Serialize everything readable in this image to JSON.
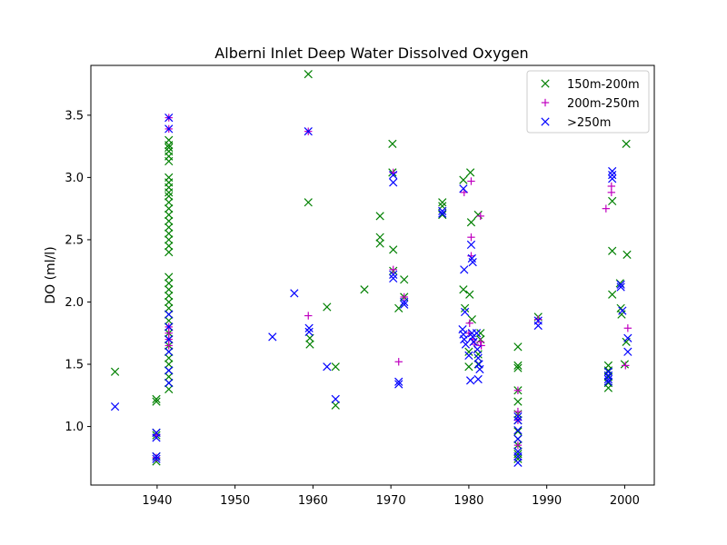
{
  "chart_data": {
    "type": "scatter",
    "title": "Alberni Inlet Deep Water Dissolved Oxygen",
    "xlabel": "",
    "ylabel": "DO (ml/l)",
    "xlim": [
      1931.5,
      2003.8
    ],
    "ylim": [
      0.53,
      3.9
    ],
    "xticks": [
      1940,
      1950,
      1960,
      1970,
      1980,
      1990,
      2000
    ],
    "yticks": [
      1.0,
      1.5,
      2.0,
      2.5,
      3.0,
      3.5
    ],
    "ytick_labels": [
      "1.0",
      "1.5",
      "2.0",
      "2.5",
      "3.0",
      "3.5"
    ],
    "grid": false,
    "legend_position": "upper right",
    "series": [
      {
        "name": "150m-200m",
        "marker": "x",
        "color": "#008000",
        "points": [
          [
            1934.6,
            1.44
          ],
          [
            1939.9,
            1.22
          ],
          [
            1939.9,
            1.2
          ],
          [
            1939.9,
            0.95
          ],
          [
            1939.9,
            0.93
          ],
          [
            1939.9,
            0.76
          ],
          [
            1939.9,
            0.72
          ],
          [
            1941.5,
            3.3
          ],
          [
            1941.5,
            3.26
          ],
          [
            1941.5,
            3.24
          ],
          [
            1941.5,
            3.21
          ],
          [
            1941.5,
            3.17
          ],
          [
            1941.5,
            3.13
          ],
          [
            1941.5,
            3.0
          ],
          [
            1941.5,
            2.96
          ],
          [
            1941.5,
            2.92
          ],
          [
            1941.5,
            2.88
          ],
          [
            1941.5,
            2.85
          ],
          [
            1941.5,
            2.8
          ],
          [
            1941.5,
            2.75
          ],
          [
            1941.5,
            2.7
          ],
          [
            1941.5,
            2.65
          ],
          [
            1941.5,
            2.6
          ],
          [
            1941.5,
            2.55
          ],
          [
            1941.5,
            2.5
          ],
          [
            1941.5,
            2.45
          ],
          [
            1941.5,
            2.4
          ],
          [
            1941.5,
            2.2
          ],
          [
            1941.5,
            2.15
          ],
          [
            1941.5,
            2.1
          ],
          [
            1941.5,
            2.05
          ],
          [
            1941.5,
            2.0
          ],
          [
            1941.5,
            1.95
          ],
          [
            1941.5,
            1.9
          ],
          [
            1941.5,
            1.85
          ],
          [
            1941.5,
            1.8
          ],
          [
            1941.5,
            1.75
          ],
          [
            1941.5,
            1.7
          ],
          [
            1941.5,
            1.65
          ],
          [
            1941.5,
            1.6
          ],
          [
            1941.5,
            1.55
          ],
          [
            1941.5,
            1.5
          ],
          [
            1941.5,
            1.45
          ],
          [
            1941.5,
            1.4
          ],
          [
            1941.5,
            1.35
          ],
          [
            1941.5,
            1.3
          ],
          [
            1959.4,
            3.83
          ],
          [
            1959.4,
            2.8
          ],
          [
            1959.6,
            1.71
          ],
          [
            1959.6,
            1.66
          ],
          [
            1961.8,
            1.96
          ],
          [
            1962.9,
            1.48
          ],
          [
            1962.9,
            1.17
          ],
          [
            1966.6,
            2.1
          ],
          [
            1968.6,
            2.69
          ],
          [
            1968.6,
            2.52
          ],
          [
            1968.6,
            2.47
          ],
          [
            1970.2,
            3.27
          ],
          [
            1970.2,
            3.04
          ],
          [
            1970.3,
            2.42
          ],
          [
            1970.3,
            2.25
          ],
          [
            1971.0,
            1.95
          ],
          [
            1971.7,
            2.18
          ],
          [
            1971.7,
            2.04
          ],
          [
            1976.6,
            2.8
          ],
          [
            1976.6,
            2.77
          ],
          [
            1976.6,
            2.7
          ],
          [
            1979.3,
            2.98
          ],
          [
            1979.3,
            2.1
          ],
          [
            1979.5,
            1.95
          ],
          [
            1980.2,
            3.04
          ],
          [
            1980.3,
            2.64
          ],
          [
            1980.1,
            2.06
          ],
          [
            1980.4,
            1.86
          ],
          [
            1980.0,
            1.6
          ],
          [
            1980.0,
            1.48
          ],
          [
            1981.2,
            2.7
          ],
          [
            1981.2,
            1.58
          ],
          [
            1981.2,
            1.5
          ],
          [
            1981.5,
            1.75
          ],
          [
            1981.5,
            1.7
          ],
          [
            1986.3,
            1.64
          ],
          [
            1986.3,
            1.49
          ],
          [
            1986.3,
            1.47
          ],
          [
            1986.3,
            1.29
          ],
          [
            1986.3,
            1.2
          ],
          [
            1986.3,
            1.1
          ],
          [
            1986.3,
            1.05
          ],
          [
            1986.3,
            0.96
          ],
          [
            1986.3,
            0.9
          ],
          [
            1986.3,
            0.85
          ],
          [
            1986.3,
            0.78
          ],
          [
            1986.3,
            0.74
          ],
          [
            1988.9,
            1.88
          ],
          [
            1997.9,
            1.49
          ],
          [
            1997.9,
            1.45
          ],
          [
            1997.9,
            1.4
          ],
          [
            1997.9,
            1.35
          ],
          [
            1997.9,
            1.31
          ],
          [
            1998.4,
            2.81
          ],
          [
            1998.4,
            2.41
          ],
          [
            1998.4,
            2.06
          ],
          [
            1999.4,
            2.15
          ],
          [
            1999.5,
            1.95
          ],
          [
            1999.6,
            1.9
          ],
          [
            2000.2,
            3.27
          ],
          [
            2000.3,
            2.38
          ],
          [
            2000.2,
            1.68
          ],
          [
            2000.0,
            1.5
          ]
        ]
      },
      {
        "name": "200m-250m",
        "marker": "+",
        "color": "#c000c0",
        "points": [
          [
            1941.5,
            3.48
          ],
          [
            1941.5,
            3.39
          ],
          [
            1941.5,
            1.8
          ],
          [
            1941.5,
            1.75
          ],
          [
            1941.5,
            1.7
          ],
          [
            1941.5,
            1.65
          ],
          [
            1939.9,
            0.93
          ],
          [
            1939.9,
            0.75
          ],
          [
            1959.4,
            3.37
          ],
          [
            1959.4,
            1.89
          ],
          [
            1970.3,
            3.04
          ],
          [
            1970.3,
            2.26
          ],
          [
            1971.0,
            1.52
          ],
          [
            1971.7,
            2.04
          ],
          [
            1979.4,
            2.88
          ],
          [
            1980.3,
            2.97
          ],
          [
            1980.3,
            2.52
          ],
          [
            1980.3,
            2.37
          ],
          [
            1980.1,
            1.83
          ],
          [
            1980.0,
            1.75
          ],
          [
            1980.5,
            1.7
          ],
          [
            1980.8,
            1.66
          ],
          [
            1981.5,
            2.69
          ],
          [
            1981.5,
            1.68
          ],
          [
            1981.6,
            1.65
          ],
          [
            1986.3,
            1.29
          ],
          [
            1986.3,
            1.12
          ],
          [
            1986.3,
            1.05
          ],
          [
            1986.3,
            0.85
          ],
          [
            1988.9,
            1.86
          ],
          [
            1997.6,
            2.75
          ],
          [
            1998.3,
            2.93
          ],
          [
            1998.3,
            2.88
          ],
          [
            2000.4,
            1.79
          ],
          [
            2000.1,
            1.49
          ]
        ]
      },
      {
        "name": ">250m",
        "marker": "x",
        "color": "#0000ff",
        "points": [
          [
            1934.6,
            1.16
          ],
          [
            1939.9,
            0.95
          ],
          [
            1939.9,
            0.91
          ],
          [
            1939.9,
            0.76
          ],
          [
            1939.9,
            0.74
          ],
          [
            1941.5,
            3.48
          ],
          [
            1941.5,
            3.39
          ],
          [
            1941.5,
            1.9
          ],
          [
            1941.5,
            1.8
          ],
          [
            1941.5,
            1.7
          ],
          [
            1941.5,
            1.6
          ],
          [
            1941.5,
            1.45
          ],
          [
            1941.5,
            1.35
          ],
          [
            1954.8,
            1.72
          ],
          [
            1957.6,
            2.07
          ],
          [
            1959.4,
            3.37
          ],
          [
            1959.5,
            1.79
          ],
          [
            1959.5,
            1.76
          ],
          [
            1961.8,
            1.48
          ],
          [
            1962.9,
            1.22
          ],
          [
            1970.3,
            3.02
          ],
          [
            1970.3,
            2.96
          ],
          [
            1970.3,
            2.22
          ],
          [
            1970.3,
            2.19
          ],
          [
            1971.0,
            1.36
          ],
          [
            1971.0,
            1.34
          ],
          [
            1971.7,
            2.0
          ],
          [
            1971.7,
            1.98
          ],
          [
            1976.6,
            2.73
          ],
          [
            1976.6,
            2.71
          ],
          [
            1979.3,
            2.91
          ],
          [
            1979.4,
            2.26
          ],
          [
            1979.5,
            1.92
          ],
          [
            1979.2,
            1.78
          ],
          [
            1979.3,
            1.74
          ],
          [
            1979.4,
            1.7
          ],
          [
            1979.6,
            1.66
          ],
          [
            1980.0,
            1.57
          ],
          [
            1980.2,
            1.37
          ],
          [
            1980.4,
            1.75
          ],
          [
            1980.5,
            1.72
          ],
          [
            1980.6,
            1.68
          ],
          [
            1980.3,
            2.46
          ],
          [
            1980.4,
            2.35
          ],
          [
            1980.5,
            2.32
          ],
          [
            1981.0,
            1.75
          ],
          [
            1981.1,
            1.62
          ],
          [
            1981.2,
            1.55
          ],
          [
            1981.3,
            1.5
          ],
          [
            1981.4,
            1.46
          ],
          [
            1981.2,
            1.38
          ],
          [
            1986.3,
            1.08
          ],
          [
            1986.3,
            1.05
          ],
          [
            1986.3,
            0.97
          ],
          [
            1986.3,
            0.9
          ],
          [
            1986.3,
            0.8
          ],
          [
            1986.3,
            0.76
          ],
          [
            1986.3,
            0.71
          ],
          [
            1988.9,
            1.85
          ],
          [
            1988.9,
            1.81
          ],
          [
            1997.9,
            1.44
          ],
          [
            1997.9,
            1.41
          ],
          [
            1997.9,
            1.38
          ],
          [
            1997.9,
            1.36
          ],
          [
            1998.4,
            3.05
          ],
          [
            1998.4,
            3.02
          ],
          [
            1998.4,
            2.99
          ],
          [
            1999.5,
            2.14
          ],
          [
            1999.5,
            2.12
          ],
          [
            1999.7,
            1.93
          ],
          [
            2000.4,
            1.71
          ],
          [
            2000.4,
            1.6
          ]
        ]
      }
    ]
  }
}
